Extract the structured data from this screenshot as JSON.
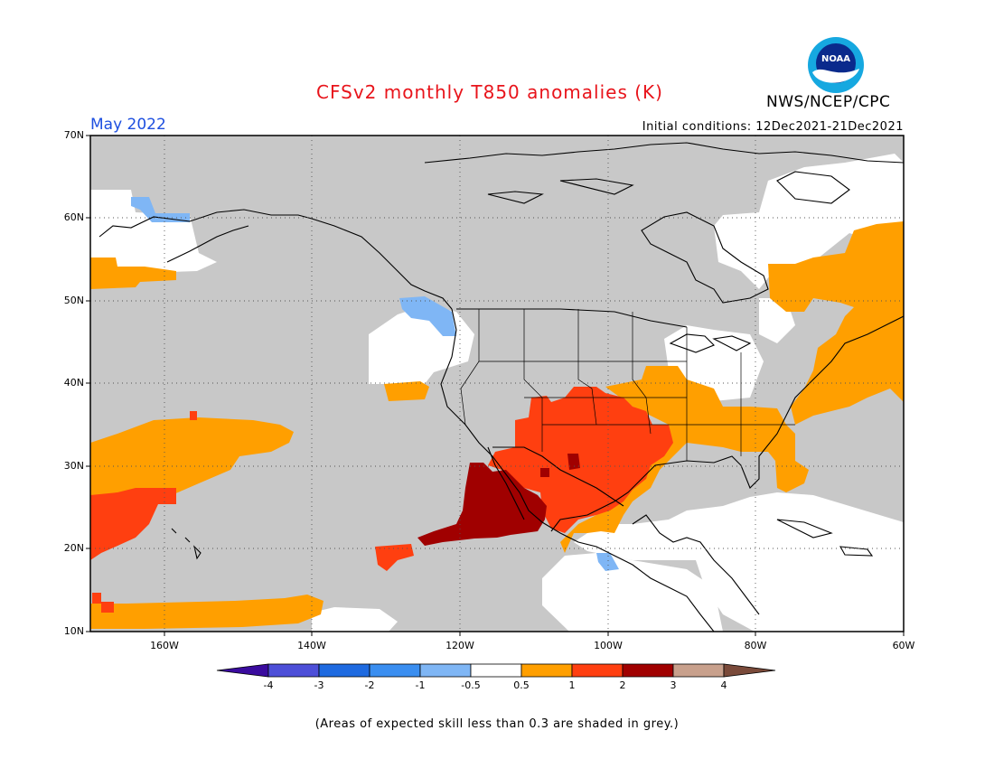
{
  "header": {
    "title": "CFSv2 monthly T850 anomalies (K)",
    "organization": "NWS/NCEP/CPC",
    "period": "May 2022",
    "initial_conditions": "Initial conditions: 12Dec2021-21Dec2021",
    "logo_text": "NOAA"
  },
  "map": {
    "lat_labels": [
      "70N",
      "60N",
      "50N",
      "40N",
      "30N",
      "20N",
      "10N"
    ],
    "lon_labels": [
      "160W",
      "140W",
      "120W",
      "100W",
      "80W",
      "60W"
    ],
    "colors": {
      "grey_skill": "#c8c8c8",
      "neutral": "#ffffff",
      "cold_light": "#7fb6f5",
      "warm_0_5_1": "#ff9f00",
      "warm_1_2": "#ff3f10",
      "warm_2_3": "#a00000",
      "coast": "#000000"
    }
  },
  "colorbar": {
    "labels": [
      "-4",
      "-3",
      "-2",
      "-1",
      "-0.5",
      "0.5",
      "1",
      "2",
      "3",
      "4"
    ],
    "colors": [
      "#3a0b9e",
      "#4d4fd8",
      "#1e6ae0",
      "#3a8ef0",
      "#7fb6f5",
      "#ffffff",
      "#ff9f00",
      "#ff3f10",
      "#a00000",
      "#c8a08c",
      "#7a4a3a"
    ]
  },
  "footer": {
    "note": "(Areas of expected skill less than 0.3 are shaded in grey.)"
  }
}
